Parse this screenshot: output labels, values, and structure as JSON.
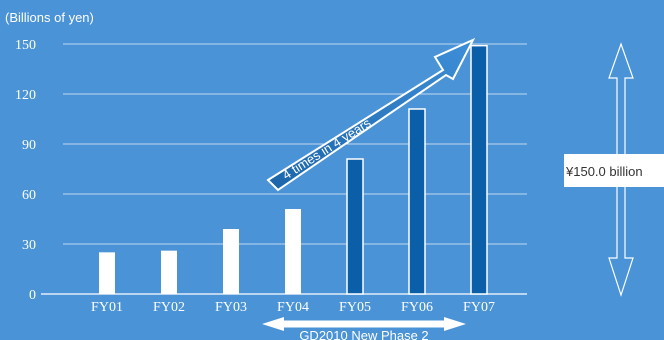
{
  "chart_data": {
    "type": "bar",
    "unit_label": "(Billions of yen)",
    "categories": [
      "FY01",
      "FY02",
      "FY03",
      "FY04",
      "FY05",
      "FY06",
      "FY07"
    ],
    "values": [
      25,
      26,
      39,
      51,
      81,
      111,
      149
    ],
    "ylim": [
      0,
      150
    ],
    "yticks": [
      0,
      30,
      60,
      90,
      120,
      150
    ],
    "grid": true,
    "colors": {
      "background": "#4a93d6",
      "bar_early": "#ffffff",
      "bar_later": "#0b5ea8",
      "bar_later_border": "#ffffff",
      "arrow": "#1f6fb5"
    },
    "annotations": {
      "growth_arrow_text": "4 times in 4 years",
      "range_label": "GD2010 New Phase 2",
      "total_label": "¥150.0 billion"
    }
  }
}
